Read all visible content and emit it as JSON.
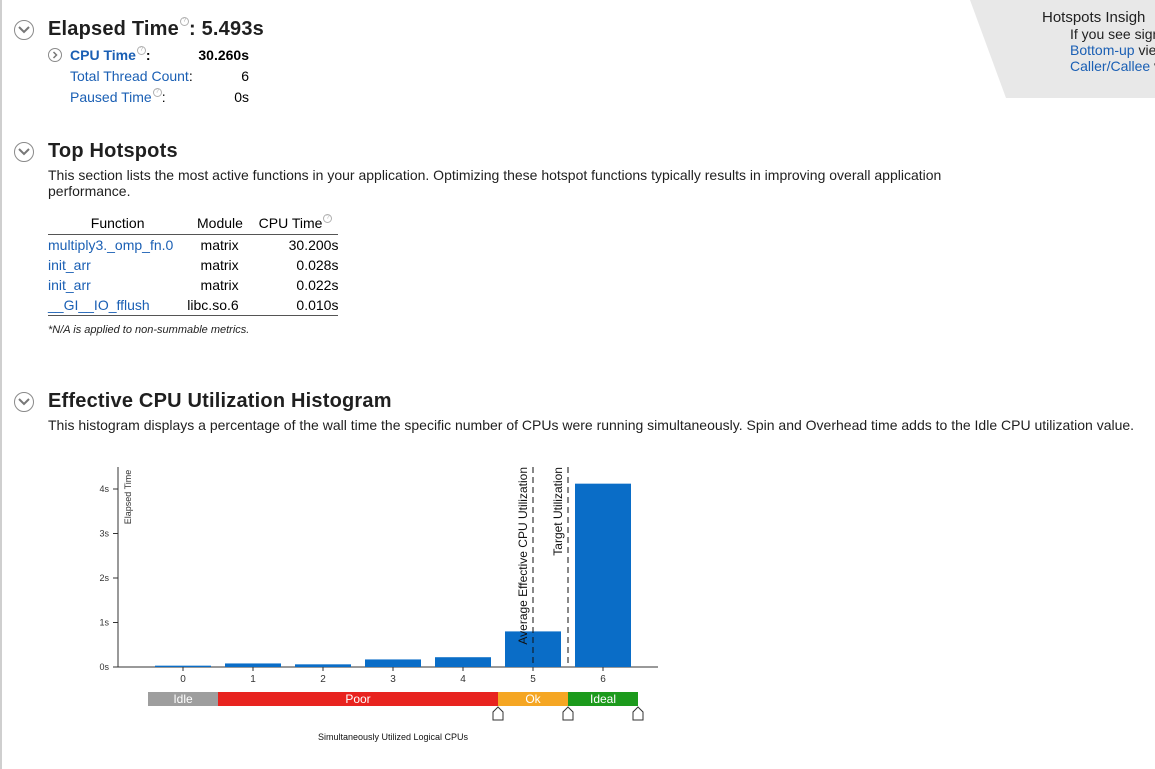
{
  "summary": {
    "elapsed_label": "Elapsed Time",
    "elapsed_value": ": 5.493s",
    "cpu_time_label": "CPU Time",
    "cpu_time_value": "30.260s",
    "thread_count_label": "Total Thread Count",
    "thread_count_value": "6",
    "paused_label": "Paused Time",
    "paused_value": "0s",
    "colon": ":"
  },
  "insights": {
    "title": "Hotspots Insigh",
    "line1": "If you see sign",
    "line2_link": "Bottom-up",
    "line2_text": " vie",
    "line3_link": "Caller/Callee",
    "line3_text": " v"
  },
  "top_hotspots": {
    "title": "Top Hotspots",
    "description": "This section lists the most active functions in your application. Optimizing these hotspot functions typically results in improving overall application performance.",
    "columns": [
      "Function",
      "Module",
      "CPU Time"
    ],
    "rows": [
      {
        "function": "multiply3._omp_fn.0",
        "module": "matrix",
        "cpu_time": "30.200s"
      },
      {
        "function": "init_arr",
        "module": "matrix",
        "cpu_time": "0.028s"
      },
      {
        "function": "init_arr",
        "module": "matrix",
        "cpu_time": "0.022s"
      },
      {
        "function": "__GI__IO_fflush",
        "module": "libc.so.6",
        "cpu_time": "0.010s"
      }
    ],
    "note": "*N/A is applied to non-summable metrics."
  },
  "histogram": {
    "title": "Effective CPU Utilization Histogram",
    "description": "This histogram displays a percentage of the wall time the specific number of CPUs were running simultaneously. Spin and Overhead time adds to the Idle CPU utilization value."
  },
  "chart_data": {
    "type": "bar",
    "categories": [
      "0",
      "1",
      "2",
      "3",
      "4",
      "5",
      "6"
    ],
    "values": [
      0.03,
      0.08,
      0.06,
      0.17,
      0.22,
      0.8,
      4.12
    ],
    "ylabel": "Elapsed Time",
    "xlabel": "Simultaneously Utilized Logical CPUs",
    "ylim": [
      0,
      4.4
    ],
    "y_ticks": [
      "0s",
      "1s",
      "2s",
      "3s",
      "4s"
    ],
    "bar_color": "#0a6dc7",
    "markers": [
      {
        "label": "Average Effective CPU Utilization",
        "x": 5.5
      },
      {
        "label": "Target Utilization",
        "x": 6
      }
    ],
    "zones": [
      {
        "label": "Idle",
        "from": 0,
        "to": 1,
        "color": "#9e9e9e"
      },
      {
        "label": "Poor",
        "from": 1,
        "to": 5,
        "color": "#e8231f"
      },
      {
        "label": "Ok",
        "from": 5,
        "to": 6,
        "color": "#f5a623"
      },
      {
        "label": "Ideal",
        "from": 6,
        "to": 7,
        "color": "#1c9a1c"
      }
    ]
  }
}
